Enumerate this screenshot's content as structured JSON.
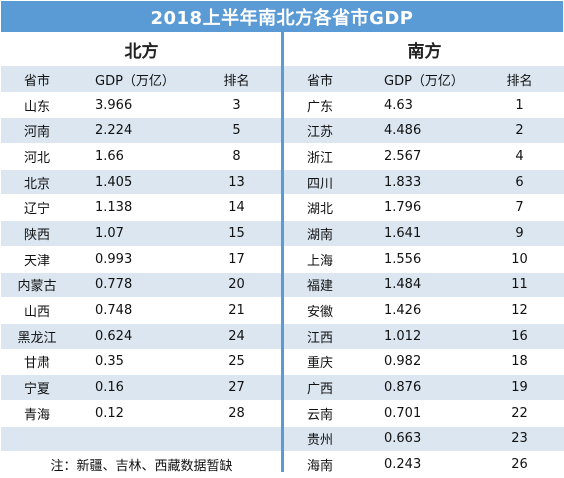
{
  "title": "2018上半年南北方各省市GDP",
  "north": {
    "region": "北方",
    "headers": [
      "省市",
      "GDP（万亿）",
      "排名"
    ],
    "rows": [
      [
        "山东",
        "3.966",
        "3"
      ],
      [
        "河南",
        "2.224",
        "5"
      ],
      [
        "河北",
        "1.66",
        "8"
      ],
      [
        "北京",
        "1.405",
        "13"
      ],
      [
        "辽宁",
        "1.138",
        "14"
      ],
      [
        "陕西",
        "1.07",
        "15"
      ],
      [
        "天津",
        "0.993",
        "17"
      ],
      [
        "内蒙古",
        "0.778",
        "20"
      ],
      [
        "山西",
        "0.748",
        "21"
      ],
      [
        "黑龙江",
        "0.624",
        "24"
      ],
      [
        "甘肃",
        "0.35",
        "25"
      ],
      [
        "宁夏",
        "0.16",
        "27"
      ],
      [
        "青海",
        "0.12",
        "28"
      ]
    ],
    "note": "注：新疆、吉林、西藏数据暂缺"
  },
  "south": {
    "region": "南方",
    "headers": [
      "省市",
      "GDP（万亿）",
      "排名"
    ],
    "rows": [
      [
        "广东",
        "4.63",
        "1"
      ],
      [
        "江苏",
        "4.486",
        "2"
      ],
      [
        "浙江",
        "2.567",
        "4"
      ],
      [
        "四川",
        "1.833",
        "6"
      ],
      [
        "湖北",
        "1.796",
        "7"
      ],
      [
        "湖南",
        "1.641",
        "9"
      ],
      [
        "上海",
        "1.556",
        "10"
      ],
      [
        "福建",
        "1.484",
        "11"
      ],
      [
        "安徽",
        "1.426",
        "12"
      ],
      [
        "江西",
        "1.012",
        "16"
      ],
      [
        "重庆",
        "0.982",
        "18"
      ],
      [
        "广西",
        "0.876",
        "19"
      ],
      [
        "云南",
        "0.701",
        "22"
      ],
      [
        "贵州",
        "0.663",
        "23"
      ],
      [
        "海南",
        "0.243",
        "26"
      ]
    ]
  },
  "colors": {
    "header_blue": "#5b9bd5",
    "stripe": "#dbe6f1"
  }
}
